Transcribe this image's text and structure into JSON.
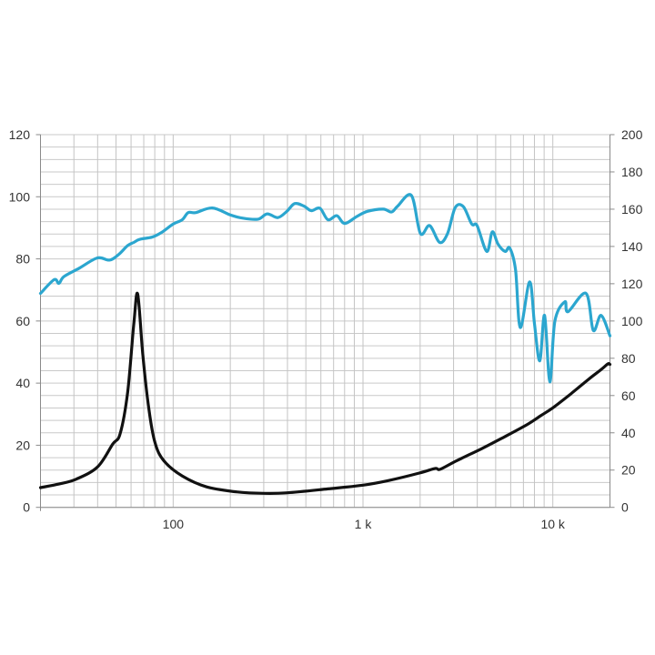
{
  "chart_data": {
    "type": "line",
    "title": "",
    "xlabel": "",
    "ylabel": "",
    "y2label": "",
    "x_scale": "log",
    "xlim": [
      20,
      20000
    ],
    "ylim": [
      0,
      120
    ],
    "y2lim": [
      0,
      200
    ],
    "grid": true,
    "legend": "none",
    "x_tick_values": [
      100,
      1000,
      10000
    ],
    "x_tick_labels": [
      "100",
      "1 k",
      "10 k"
    ],
    "y_tick_labels": [
      "0",
      "20",
      "40",
      "60",
      "80",
      "100",
      "120"
    ],
    "y2_tick_labels": [
      "0",
      "20",
      "40",
      "60",
      "80",
      "100",
      "120",
      "140",
      "160",
      "180",
      "200"
    ],
    "series": [
      {
        "axis": "left",
        "color": "#2ba6cf",
        "x": [
          20,
          23.6,
          25,
          26.6,
          32,
          39.9,
          46.2,
          51.6,
          57.6,
          62,
          66.7,
          77.3,
          86.3,
          100,
          111.7,
          120,
          131.7,
          161,
          201,
          233,
          280,
          313,
          356,
          397,
          436,
          488,
          534,
          593,
          653,
          728,
          800,
          925,
          1055,
          1280,
          1416,
          1524,
          1800,
          2005,
          2244,
          2534,
          2790,
          3060,
          3380,
          3740,
          3990,
          4490,
          4800,
          5140,
          5610,
          5930,
          6360,
          6740,
          7550,
          8010,
          8540,
          9050,
          9640,
          10250,
          11580,
          12020,
          14960,
          16330,
          17950,
          20000
        ],
        "y": [
          68.9,
          73.3,
          72.1,
          74.3,
          77,
          80.3,
          79.6,
          81.4,
          84.3,
          85.3,
          86.3,
          87.0,
          88.4,
          91.2,
          92.6,
          94.9,
          94.9,
          96.4,
          94.1,
          93.1,
          92.8,
          94.5,
          93.3,
          95.3,
          97.8,
          97.0,
          95.5,
          96.3,
          92.6,
          93.9,
          91.4,
          93.6,
          95.3,
          96.0,
          95.1,
          97.0,
          100.4,
          88.2,
          90.7,
          85.3,
          88.2,
          96.5,
          96.8,
          91.2,
          90.7,
          82.4,
          88.7,
          84.8,
          82.4,
          83.5,
          76.5,
          57.9,
          72.6,
          58.9,
          47.2,
          61.8,
          40.4,
          59.9,
          66.2,
          63.0,
          68.9,
          57.0,
          61.8,
          55.2
        ]
      },
      {
        "axis": "right",
        "color": "#111111",
        "x": [
          20,
          25,
          30.8,
          40,
          48,
          52.6,
          57.6,
          62,
          65,
          69.2,
          74.5,
          80.2,
          89.5,
          111.7,
          150,
          216,
          302,
          400,
          653,
          1000,
          1350,
          1980,
          2400,
          2550,
          3100,
          4200,
          5600,
          7350,
          8700,
          10000,
          12400,
          15500,
          17900,
          19500,
          20000
        ],
        "y": [
          10.6,
          12.5,
          15.1,
          21.7,
          33.9,
          39.6,
          62,
          98,
          114.5,
          81.9,
          52.6,
          34.7,
          24.9,
          16.8,
          11,
          8.3,
          7.5,
          7.8,
          9.9,
          11.9,
          14.3,
          18.4,
          20.9,
          20.4,
          24.9,
          31.4,
          38,
          44.5,
          49.4,
          53.4,
          60.8,
          68.9,
          73.8,
          77,
          76.7
        ]
      }
    ]
  }
}
